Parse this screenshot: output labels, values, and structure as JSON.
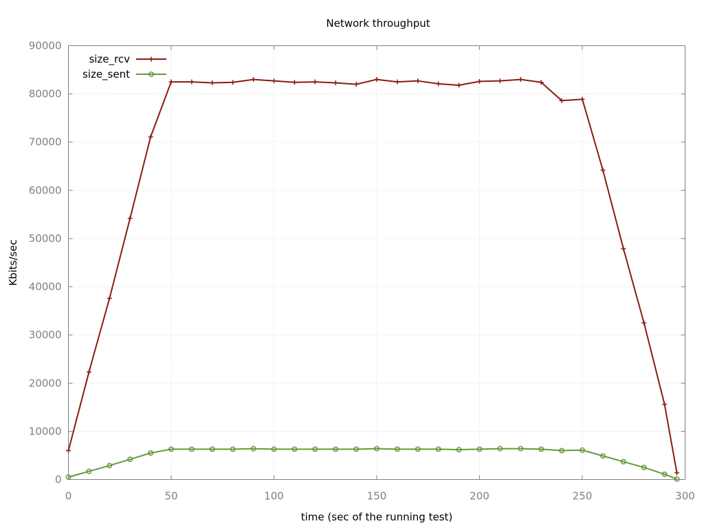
{
  "chart_data": {
    "type": "line",
    "title": "Network throughput",
    "xlabel": "time (sec of the running test)",
    "ylabel": "Kbits/sec",
    "xlim": [
      0,
      300
    ],
    "ylim": [
      0,
      90000
    ],
    "xticks": [
      0,
      50,
      100,
      150,
      200,
      250,
      300
    ],
    "yticks": [
      0,
      10000,
      20000,
      30000,
      40000,
      50000,
      60000,
      70000,
      80000,
      90000
    ],
    "grid": true,
    "legend_position": "top-left",
    "series": [
      {
        "name": "size_rcv",
        "color": "#8b1a0e",
        "marker": "plus",
        "x": [
          0,
          10,
          20,
          30,
          40,
          50,
          60,
          70,
          80,
          90,
          100,
          110,
          120,
          130,
          140,
          150,
          160,
          170,
          180,
          190,
          200,
          210,
          220,
          230,
          240,
          250,
          260,
          270,
          280,
          290,
          296
        ],
        "y": [
          6000,
          22300,
          37600,
          54200,
          71100,
          82500,
          82500,
          82300,
          82400,
          83000,
          82700,
          82400,
          82500,
          82300,
          82000,
          83000,
          82500,
          82700,
          82100,
          81800,
          82600,
          82700,
          83000,
          82400,
          78600,
          78900,
          64200,
          47900,
          32500,
          15600,
          1400
        ]
      },
      {
        "name": "size_sent",
        "color": "#5e9c36",
        "marker": "circle",
        "x": [
          0,
          10,
          20,
          30,
          40,
          50,
          60,
          70,
          80,
          90,
          100,
          110,
          120,
          130,
          140,
          150,
          160,
          170,
          180,
          190,
          200,
          210,
          220,
          230,
          240,
          250,
          260,
          270,
          280,
          290,
          296
        ],
        "y": [
          500,
          1700,
          2900,
          4200,
          5500,
          6300,
          6300,
          6300,
          6300,
          6400,
          6300,
          6300,
          6300,
          6300,
          6300,
          6400,
          6300,
          6300,
          6300,
          6200,
          6300,
          6400,
          6400,
          6300,
          6000,
          6100,
          4900,
          3700,
          2500,
          1100,
          100
        ]
      }
    ]
  }
}
